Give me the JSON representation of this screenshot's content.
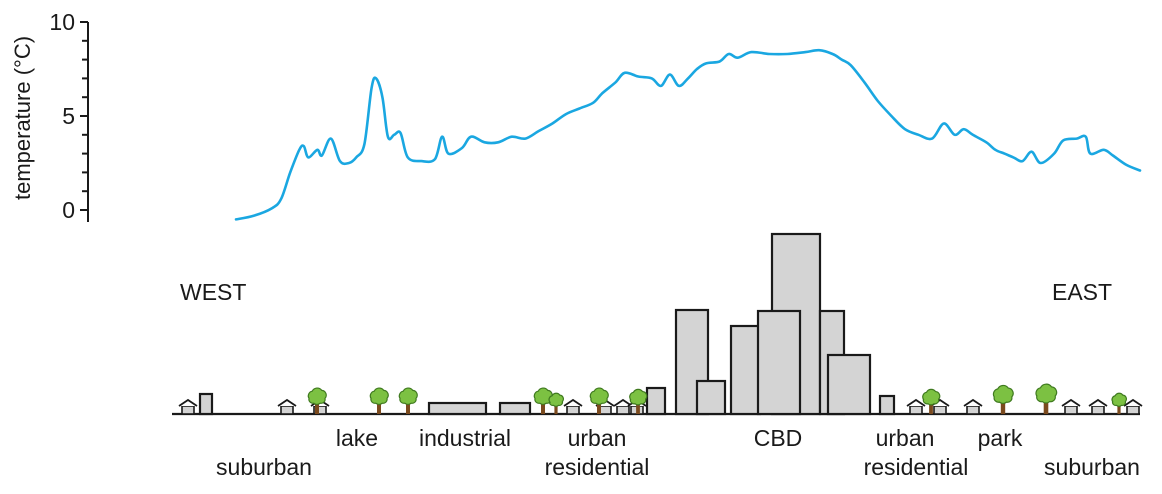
{
  "chart_data": {
    "type": "line",
    "ylabel": "temperature (°C)",
    "yticks": [
      0,
      5,
      10
    ],
    "ylim": [
      0,
      10
    ],
    "x_range": [
      0,
      100
    ],
    "series": [
      {
        "color": "#1aa7e1",
        "points": [
          [
            0,
            -0.5
          ],
          [
            2,
            -0.3
          ],
          [
            4,
            0.1
          ],
          [
            5,
            0.6
          ],
          [
            6,
            2.0
          ],
          [
            7,
            3.2
          ],
          [
            7.5,
            3.4
          ],
          [
            8,
            2.8
          ],
          [
            9,
            3.2
          ],
          [
            9.5,
            2.9
          ],
          [
            10.5,
            3.8
          ],
          [
            11.5,
            2.6
          ],
          [
            12.5,
            2.5
          ],
          [
            13.3,
            2.8
          ],
          [
            14.2,
            3.5
          ],
          [
            15,
            6.5
          ],
          [
            15.5,
            7.0
          ],
          [
            16.2,
            6.0
          ],
          [
            16.8,
            3.9
          ],
          [
            17.5,
            4.0
          ],
          [
            18.2,
            4.1
          ],
          [
            19,
            2.8
          ],
          [
            20.5,
            2.6
          ],
          [
            22,
            2.7
          ],
          [
            22.8,
            3.9
          ],
          [
            23.5,
            3.0
          ],
          [
            25,
            3.3
          ],
          [
            26,
            3.9
          ],
          [
            27.5,
            3.6
          ],
          [
            29,
            3.6
          ],
          [
            30.5,
            3.9
          ],
          [
            32,
            3.8
          ],
          [
            33.5,
            4.2
          ],
          [
            35,
            4.6
          ],
          [
            36.5,
            5.1
          ],
          [
            38,
            5.4
          ],
          [
            39.5,
            5.7
          ],
          [
            40.5,
            6.2
          ],
          [
            42,
            6.8
          ],
          [
            43,
            7.3
          ],
          [
            44.5,
            7.1
          ],
          [
            46,
            7.0
          ],
          [
            47,
            6.6
          ],
          [
            48,
            7.2
          ],
          [
            49,
            6.6
          ],
          [
            50,
            7.0
          ],
          [
            51,
            7.5
          ],
          [
            52,
            7.8
          ],
          [
            53.5,
            7.9
          ],
          [
            54.5,
            8.3
          ],
          [
            55.5,
            8.1
          ],
          [
            57,
            8.4
          ],
          [
            59,
            8.3
          ],
          [
            61,
            8.3
          ],
          [
            63,
            8.4
          ],
          [
            64.5,
            8.5
          ],
          [
            66,
            8.3
          ],
          [
            67,
            8.0
          ],
          [
            68,
            7.7
          ],
          [
            69.5,
            6.8
          ],
          [
            71,
            5.8
          ],
          [
            72.5,
            5.0
          ],
          [
            74,
            4.3
          ],
          [
            75.5,
            4.0
          ],
          [
            77,
            3.8
          ],
          [
            78.3,
            4.6
          ],
          [
            79.5,
            4.0
          ],
          [
            80.5,
            4.3
          ],
          [
            81.5,
            4.0
          ],
          [
            83,
            3.6
          ],
          [
            84,
            3.2
          ],
          [
            85,
            3.0
          ],
          [
            86,
            2.8
          ],
          [
            87,
            2.6
          ],
          [
            88,
            3.1
          ],
          [
            89,
            2.5
          ],
          [
            90.5,
            3.0
          ],
          [
            91.5,
            3.7
          ],
          [
            93,
            3.8
          ],
          [
            94,
            3.9
          ],
          [
            94.5,
            3.0
          ],
          [
            96,
            3.2
          ],
          [
            97,
            2.9
          ],
          [
            98.5,
            2.4
          ],
          [
            100,
            2.1
          ]
        ]
      }
    ],
    "grid": false
  },
  "diagram": {
    "direction_left": "WEST",
    "direction_right": "EAST",
    "regions": [
      {
        "line1": "suburban",
        "line2": ""
      },
      {
        "line1": "lake",
        "line2": ""
      },
      {
        "line1": "industrial",
        "line2": ""
      },
      {
        "line1": "urban",
        "line2": "residential"
      },
      {
        "line1": "CBD",
        "line2": ""
      },
      {
        "line1": "urban",
        "line2": "residential"
      },
      {
        "line1": "park",
        "line2": ""
      },
      {
        "line1": "suburban",
        "line2": ""
      }
    ]
  }
}
